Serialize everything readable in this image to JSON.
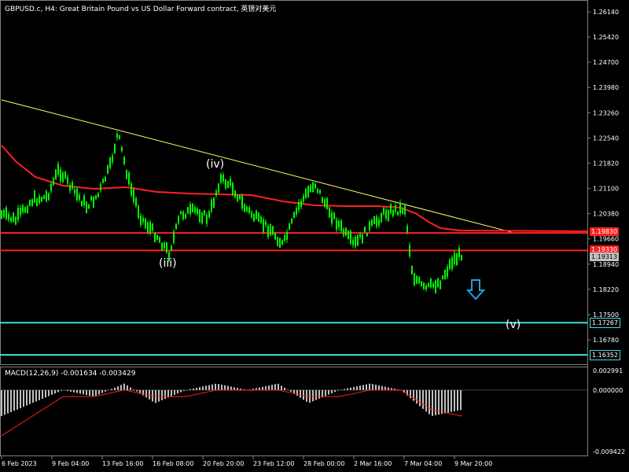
{
  "chart_title": "GBPUSD.c, H4:  Great Britain Pound vs US Dollar Forward contract, 英镑对美元",
  "macd_label": "MACD(12,26,9) -0.001634 -0.003429",
  "price_axis": [
    "1.26140",
    "1.25420",
    "1.24700",
    "1.23980",
    "1.23260",
    "1.22540",
    "1.21820",
    "1.21100",
    "1.20380",
    "1.19660",
    "1.18940",
    "1.18220",
    "1.17500",
    "1.16780"
  ],
  "macd_axis": [
    "0.002991",
    "0.000000",
    "-0.009422"
  ],
  "time_axis": [
    "6 Feb 2023",
    "9 Feb 04:00",
    "13 Feb 16:00",
    "16 Feb 08:00",
    "20 Feb 20:00",
    "23 Feb 12:00",
    "28 Feb 00:00",
    "2 Mar 16:00",
    "7 Mar 04:00",
    "9 Mar 20:00"
  ],
  "price_tags": {
    "resistance": "1.19830",
    "current": "1.19330",
    "current_bid": "1.19313",
    "target1": "1.17267",
    "target2": "1.16352"
  },
  "wave_labels": {
    "iii": "(iii)",
    "iv": "(iv)",
    "v": "(v)"
  },
  "colors": {
    "candles": "#00ff00",
    "ma": "#ff2020",
    "trendline": "#ffff66",
    "support": "#ff2020",
    "target": "#40e0e0",
    "arrow": "#1ea0e0",
    "macd_hist": "#c0c0c0",
    "macd_signal": "#ff2020"
  },
  "chart_data": {
    "type": "line",
    "title": "GBPUSD.c, H4:  Great Britain Pound vs US Dollar Forward contract, 英镑对美元",
    "xlabel": "",
    "ylabel": "",
    "x": [
      "6 Feb 2023",
      "9 Feb 04:00",
      "13 Feb 16:00",
      "16 Feb 08:00",
      "20 Feb 20:00",
      "23 Feb 12:00",
      "28 Feb 00:00",
      "2 Mar 16:00",
      "7 Mar 04:00",
      "9 Mar 20:00"
    ],
    "series": [
      {
        "values": [
          1.203,
          1.214,
          1.212,
          1.196,
          1.211,
          1.197,
          1.208,
          1.203,
          1.184,
          1.1935
        ]
      },
      {
        "values": [
          1.222,
          1.214,
          1.212,
          1.21,
          1.208,
          1.206,
          1.206,
          1.205,
          1.2,
          1.1983
        ]
      },
      {
        "values": [
          1.234,
          1.228,
          1.224,
          1.22,
          1.216,
          1.212,
          1.208,
          1.204,
          1.2,
          1.1983
        ]
      }
    ],
    "ylim": [
      1.16352,
      1.265
    ],
    "hlines": [
      1.1983,
      1.1933,
      1.17267,
      1.16352
    ],
    "macd": {
      "ylim": [
        -0.009422,
        0.002991
      ],
      "histogram": [
        -0.004,
        -0.002,
        0.0,
        -0.001,
        0.001,
        -0.002,
        0.0,
        0.001,
        0.0,
        0.001,
        -0.002,
        0.0,
        0.001,
        0.0,
        -0.004,
        -0.003
      ],
      "signal": [
        -0.007,
        -0.004,
        -0.001,
        -0.001,
        0.0,
        -0.001,
        -0.001,
        0.0,
        0.0,
        0.0,
        -0.001,
        -0.001,
        0.0,
        0.0,
        -0.003,
        -0.004
      ]
    }
  }
}
